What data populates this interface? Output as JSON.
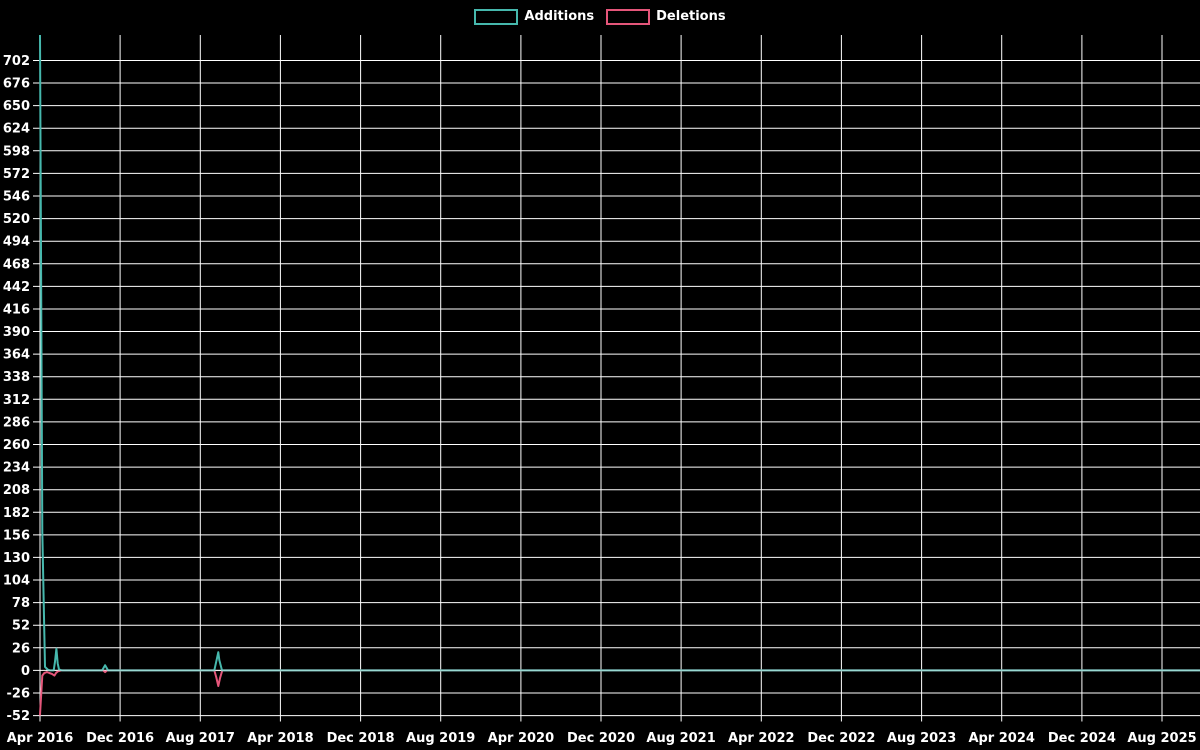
{
  "legend": {
    "items": [
      {
        "label": "Additions",
        "color": "#46b8ad"
      },
      {
        "label": "Deletions",
        "color": "#e5567a"
      }
    ]
  },
  "colors": {
    "background": "#000000",
    "grid": "#ffffff",
    "text": "#ffffff",
    "additions": "#46b8ad",
    "deletions": "#e5567a",
    "zero_line_muted": "#8cb6bc"
  },
  "chart_data": {
    "type": "line",
    "title": "",
    "legend_position": "top-center",
    "grid": true,
    "x_axis": {
      "unit": "date",
      "tick_labels": [
        "Apr 2016",
        "Dec 2016",
        "Aug 2017",
        "Apr 2018",
        "Dec 2018",
        "Aug 2019",
        "Apr 2020",
        "Dec 2020",
        "Aug 2021",
        "Apr 2022",
        "Dec 2022",
        "Aug 2023",
        "Apr 2024",
        "Dec 2024",
        "Aug 2025"
      ],
      "tick_interval_months": 8,
      "range": [
        "2016-04",
        "2025-11"
      ]
    },
    "y_axis": {
      "tick_labels": [
        702,
        676,
        650,
        624,
        598,
        572,
        546,
        520,
        494,
        468,
        442,
        416,
        390,
        364,
        338,
        312,
        286,
        260,
        234,
        208,
        182,
        156,
        130,
        104,
        78,
        52,
        26,
        0,
        -26,
        -52
      ],
      "tick_step": 26,
      "ylim": [
        -52,
        731
      ]
    },
    "series": [
      {
        "name": "Additions",
        "color": "#46b8ad",
        "points": [
          [
            "2016-04-01",
            731
          ],
          [
            "2016-04-08",
            160
          ],
          [
            "2016-04-16",
            4
          ],
          [
            "2016-04-24",
            1
          ],
          [
            "2016-05-01",
            0
          ],
          [
            "2016-05-12",
            0
          ],
          [
            "2016-05-16",
            10
          ],
          [
            "2016-05-20",
            25
          ],
          [
            "2016-05-24",
            8
          ],
          [
            "2016-05-28",
            1
          ],
          [
            "2016-06-07",
            0
          ],
          [
            "2016-10-07",
            0
          ],
          [
            "2016-10-16",
            6
          ],
          [
            "2016-10-25",
            0
          ],
          [
            "2017-09-13",
            0
          ],
          [
            "2017-09-21",
            14
          ],
          [
            "2017-09-25",
            21
          ],
          [
            "2017-09-28",
            12
          ],
          [
            "2017-10-06",
            0
          ],
          [
            "2025-11-25",
            0
          ]
        ]
      },
      {
        "name": "Deletions",
        "color": "#e5567a",
        "points": [
          [
            "2016-04-01",
            -51
          ],
          [
            "2016-04-08",
            -6
          ],
          [
            "2016-04-14",
            -3
          ],
          [
            "2016-04-22",
            -2
          ],
          [
            "2016-04-29",
            -3
          ],
          [
            "2016-05-07",
            -4
          ],
          [
            "2016-05-14",
            -6
          ],
          [
            "2016-05-19",
            -3
          ],
          [
            "2016-05-25",
            -1
          ],
          [
            "2016-06-04",
            0
          ],
          [
            "2016-10-10",
            0
          ],
          [
            "2016-10-16",
            -2
          ],
          [
            "2016-10-22",
            0
          ],
          [
            "2017-09-13",
            0
          ],
          [
            "2017-09-19",
            -8
          ],
          [
            "2017-09-25",
            -18
          ],
          [
            "2017-09-30",
            -9
          ],
          [
            "2017-10-07",
            0
          ],
          [
            "2025-11-25",
            0
          ]
        ]
      }
    ]
  }
}
